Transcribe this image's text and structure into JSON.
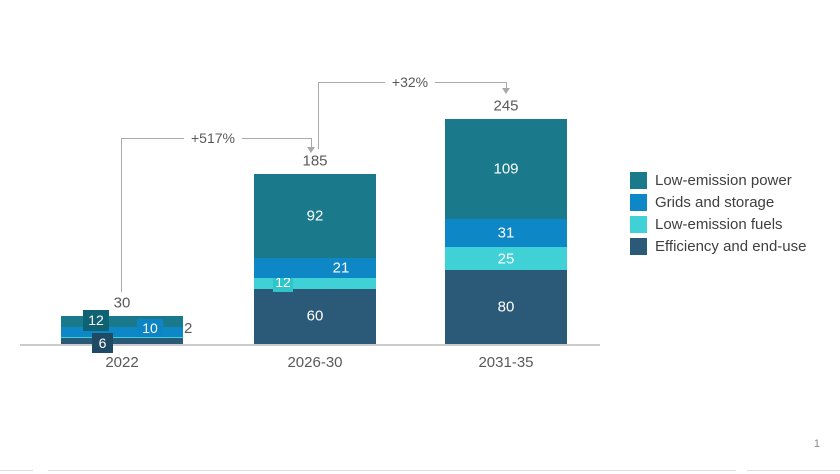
{
  "page": {
    "number": "1"
  },
  "chart_data": {
    "type": "bar",
    "stacked": true,
    "title": "",
    "xlabel": "",
    "ylabel": "",
    "grid": false,
    "legend_position": "right",
    "categories": [
      "2022",
      "2026-30",
      "2031-35"
    ],
    "series": [
      {
        "name": "Low-emission power",
        "color": "#1a7a8c",
        "values": [
          12,
          92,
          109
        ]
      },
      {
        "name": "Grids and storage",
        "color": "#0e87c6",
        "values": [
          10,
          21,
          31
        ]
      },
      {
        "name": "Low-emission fuels",
        "color": "#3fd1d6",
        "values": [
          2,
          12,
          25
        ]
      },
      {
        "name": "Efficiency and end-use",
        "color": "#2b5a79",
        "values": [
          6,
          60,
          80
        ]
      }
    ],
    "totals": [
      "30",
      "185",
      "245"
    ],
    "annotations": [
      {
        "label": "+517%",
        "from": "2022",
        "to": "2026-30"
      },
      {
        "label": "+32%",
        "from": "2026-30",
        "to": "2031-35"
      }
    ],
    "callout_box_colors": {
      "power_box": "#0f6174",
      "grids_box": "#0d84c4",
      "efficiency_box": "#1e4a64",
      "fuels_box": "#30c4cb"
    },
    "axis_line_color": "#cccccc",
    "annotation_line_color": "#a9a9a9"
  }
}
